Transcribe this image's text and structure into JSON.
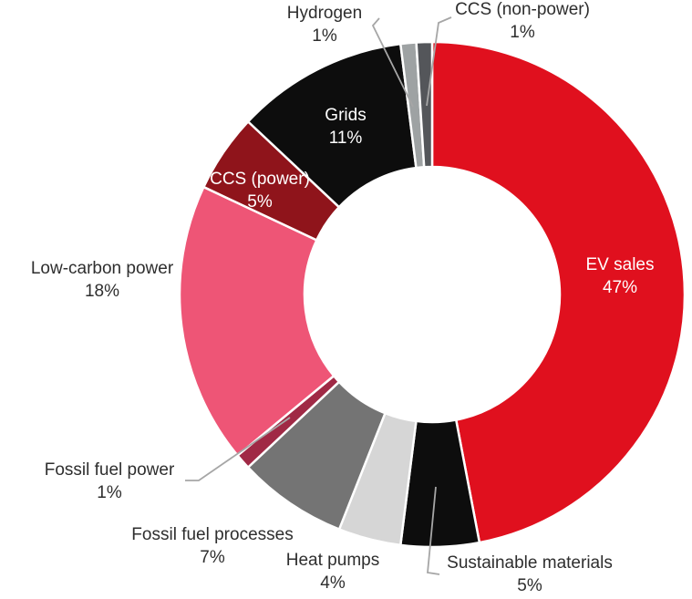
{
  "page": {
    "background": "#FFFFFF",
    "outside_label_color": "#2E2E2E",
    "inside_label_color": "#FFFFFF"
  },
  "chart_data": {
    "type": "pie",
    "subtype": "donut",
    "title": "",
    "unit": "%",
    "total": 100,
    "start_angle_deg": 0,
    "direction": "clockwise",
    "legend": "none",
    "grid": false,
    "hole_fill": "#FFFFFF",
    "slice_border_color": "#FFFFFF",
    "leader_line_color": "#A6A6A6",
    "slices": [
      {
        "label": "EV sales",
        "value": 47,
        "display": "47%",
        "color": "#E0101E",
        "label_position": "inside",
        "label_color": "#FFFFFF"
      },
      {
        "label": "Sustainable materials",
        "value": 5,
        "display": "5%",
        "color": "#0D0D0D",
        "label_position": "outside-leader",
        "label_color": "#2E2E2E"
      },
      {
        "label": "Heat pumps",
        "value": 4,
        "display": "4%",
        "color": "#D6D6D6",
        "label_position": "outside",
        "label_color": "#2E2E2E"
      },
      {
        "label": "Fossil fuel processes",
        "value": 7,
        "display": "7%",
        "color": "#747474",
        "label_position": "outside",
        "label_color": "#2E2E2E"
      },
      {
        "label": "Fossil fuel power",
        "value": 1,
        "display": "1%",
        "color": "#A02945",
        "label_position": "outside-leader",
        "label_color": "#2E2E2E"
      },
      {
        "label": "Low-carbon power",
        "value": 18,
        "display": "18%",
        "color": "#EE5576",
        "label_position": "outside",
        "label_color": "#2E2E2E"
      },
      {
        "label": "CCS (power)",
        "value": 5,
        "display": "5%",
        "color": "#8F141B",
        "label_position": "inside",
        "label_color": "#FFFFFF"
      },
      {
        "label": "Grids",
        "value": 11,
        "display": "11%",
        "color": "#0D0D0D",
        "label_position": "inside",
        "label_color": "#FFFFFF"
      },
      {
        "label": "Hydrogen",
        "value": 1,
        "display": "1%",
        "color": "#9EA2A3",
        "label_position": "outside-leader",
        "label_color": "#2E2E2E"
      },
      {
        "label": "CCS (non-power)",
        "value": 1,
        "display": "1%",
        "color": "#54565A",
        "label_position": "outside-leader",
        "label_color": "#2E2E2E"
      }
    ]
  }
}
